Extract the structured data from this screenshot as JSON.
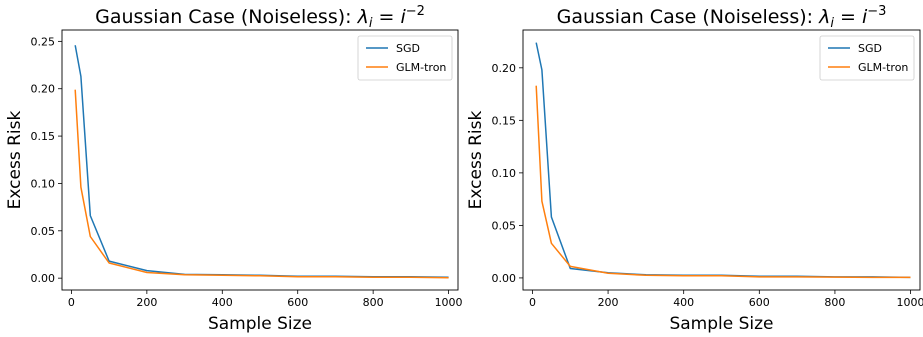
{
  "chart_data": [
    {
      "type": "line",
      "title_prefix": "Gaussian Case (Noiseless): ",
      "title_math": "λ",
      "title_sub": "i",
      "title_eq": " = ",
      "title_base": "i",
      "title_exp": "−2",
      "xlabel": "Sample Size",
      "ylabel": "Excess Risk",
      "xlim": [
        -25,
        1025
      ],
      "ylim": [
        -0.0125,
        0.262
      ],
      "xticks": [
        0,
        200,
        400,
        600,
        800,
        1000
      ],
      "yticks": [
        0.0,
        0.05,
        0.1,
        0.15,
        0.2,
        0.25
      ],
      "ytick_labels": [
        "0.00",
        "0.05",
        "0.10",
        "0.15",
        "0.20",
        "0.25"
      ],
      "legend_position": "top-right",
      "grid": false,
      "series": [
        {
          "name": "SGD",
          "color": "#1f77b4",
          "x": [
            10,
            25,
            50,
            100,
            200,
            300,
            400,
            500,
            600,
            700,
            800,
            900,
            1000
          ],
          "y": [
            0.246,
            0.213,
            0.066,
            0.018,
            0.008,
            0.004,
            0.0035,
            0.003,
            0.002,
            0.002,
            0.0015,
            0.0015,
            0.001
          ]
        },
        {
          "name": "GLM-tron",
          "color": "#ff7f0e",
          "x": [
            10,
            25,
            50,
            100,
            200,
            300,
            400,
            500,
            600,
            700,
            800,
            900,
            1000
          ],
          "y": [
            0.199,
            0.096,
            0.044,
            0.016,
            0.006,
            0.0035,
            0.003,
            0.0025,
            0.0015,
            0.0015,
            0.001,
            0.001,
            0.0005
          ]
        }
      ]
    },
    {
      "type": "line",
      "title_prefix": "Gaussian Case (Noiseless): ",
      "title_math": "λ",
      "title_sub": "i",
      "title_eq": " = ",
      "title_base": "i",
      "title_exp": "−3",
      "xlabel": "Sample Size",
      "ylabel": "Excess Risk",
      "xlim": [
        -25,
        1025
      ],
      "ylim": [
        -0.0115,
        0.236
      ],
      "xticks": [
        0,
        200,
        400,
        600,
        800,
        1000
      ],
      "yticks": [
        0.0,
        0.05,
        0.1,
        0.15,
        0.2
      ],
      "ytick_labels": [
        "0.00",
        "0.05",
        "0.10",
        "0.15",
        "0.20"
      ],
      "legend_position": "top-right",
      "grid": false,
      "series": [
        {
          "name": "SGD",
          "color": "#1f77b4",
          "x": [
            10,
            25,
            50,
            100,
            200,
            300,
            400,
            500,
            600,
            700,
            800,
            900,
            1000
          ],
          "y": [
            0.224,
            0.198,
            0.058,
            0.009,
            0.005,
            0.003,
            0.0025,
            0.0025,
            0.0015,
            0.0015,
            0.001,
            0.001,
            0.0005
          ]
        },
        {
          "name": "GLM-tron",
          "color": "#ff7f0e",
          "x": [
            10,
            25,
            50,
            100,
            200,
            300,
            400,
            500,
            600,
            700,
            800,
            900,
            1000
          ],
          "y": [
            0.183,
            0.073,
            0.033,
            0.011,
            0.0045,
            0.0025,
            0.002,
            0.002,
            0.001,
            0.001,
            0.0008,
            0.0005,
            0.0005
          ]
        }
      ]
    }
  ]
}
